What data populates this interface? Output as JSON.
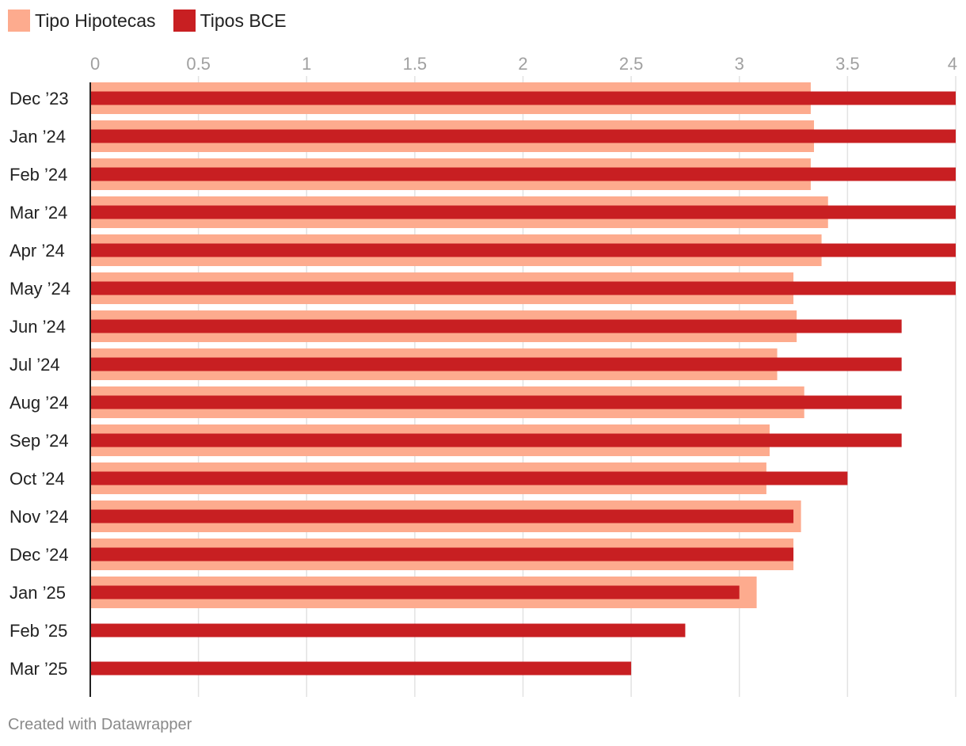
{
  "legend": {
    "items": [
      {
        "label": "Tipo Hipotecas",
        "color": "#fdab8e"
      },
      {
        "label": "Tipos BCE",
        "color": "#c81f22"
      }
    ]
  },
  "chart_data": {
    "type": "bar",
    "orientation": "horizontal",
    "categories": [
      "Dec ’23",
      "Jan ’24",
      "Feb ’24",
      "Mar ’24",
      "Apr ’24",
      "May ’24",
      "Jun ’24",
      "Jul ’24",
      "Aug ’24",
      "Sep ’24",
      "Oct ’24",
      "Nov ’24",
      "Dec ’24",
      "Jan ’25",
      "Feb ’25",
      "Mar ’25"
    ],
    "series": [
      {
        "name": "Tipo Hipotecas",
        "color": "#fdab8e",
        "values": [
          3.33,
          3.345,
          3.33,
          3.41,
          3.38,
          3.25,
          3.265,
          3.175,
          3.3,
          3.14,
          3.125,
          3.285,
          3.25,
          3.08,
          null,
          null
        ]
      },
      {
        "name": "Tipos BCE",
        "color": "#c81f22",
        "values": [
          4.0,
          4.0,
          4.0,
          4.0,
          4.0,
          4.0,
          3.75,
          3.75,
          3.75,
          3.75,
          3.5,
          3.25,
          3.25,
          3.0,
          2.75,
          2.5
        ]
      }
    ],
    "xlim": [
      0,
      4
    ],
    "xticks": [
      0,
      0.5,
      1,
      1.5,
      2,
      2.5,
      3,
      3.5,
      4
    ],
    "xtick_labels": [
      "0",
      "0.5",
      "1",
      "1.5",
      "2",
      "2.5",
      "3",
      "3.5",
      "4"
    ],
    "grid": true,
    "axis_position": "top"
  },
  "footer": {
    "credit": "Created with Datawrapper"
  }
}
